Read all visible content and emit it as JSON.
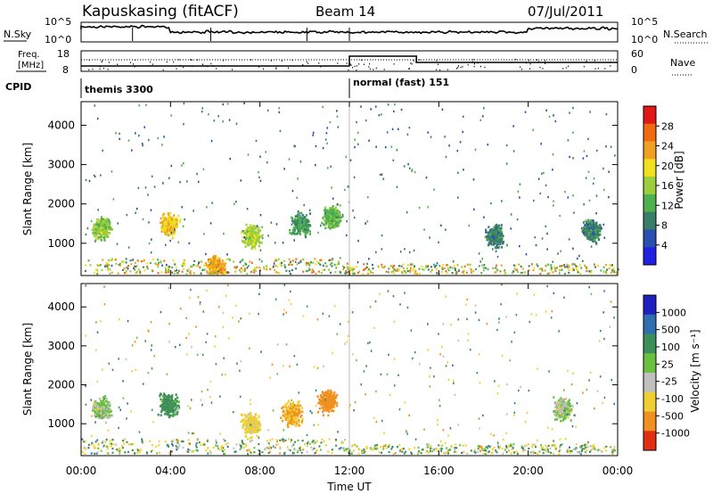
{
  "header": {
    "title": "Kapuskasing (fitACF)",
    "beam": "Beam 14",
    "date": "07/Jul/2011"
  },
  "noise_panel": {
    "left_label": "N.Sky",
    "right_label": "N.Search",
    "ticks_left": [
      "10^5",
      "10^0"
    ],
    "ticks_right": [
      "10^5",
      "10^0"
    ]
  },
  "freq_panel": {
    "left_label_1": "Freq.",
    "left_label_2": "[MHz]",
    "right_label": "Nave",
    "ticks_left": [
      "18",
      "8"
    ],
    "ticks_right": [
      "60",
      "0"
    ]
  },
  "cpid": {
    "label": "CPID",
    "segments": [
      {
        "name": "themis 3300",
        "start_hour": 0,
        "end_hour": 12
      },
      {
        "name": "normal (fast) 151",
        "start_hour": 12,
        "end_hour": 24
      }
    ]
  },
  "x_axis": {
    "label": "Time UT",
    "ticks": [
      "00:00",
      "04:00",
      "08:00",
      "12:00",
      "16:00",
      "20:00",
      "00:00"
    ]
  },
  "power_panel": {
    "ylabel": "Slant Range [km]",
    "yticks": [
      "4000",
      "3000",
      "2000",
      "1000"
    ],
    "colorbar_label": "Power [dB]",
    "colorbar_ticks": [
      "28",
      "24",
      "20",
      "16",
      "12",
      "8",
      "4"
    ],
    "colors": [
      "#2020e0",
      "#2a4fb0",
      "#3a7d6a",
      "#4fb050",
      "#9ccd3c",
      "#f0e020",
      "#f0a020",
      "#ef6a10",
      "#e01818"
    ]
  },
  "velocity_panel": {
    "ylabel": "Slant Range [km]",
    "yticks": [
      "4000",
      "3000",
      "2000",
      "1000"
    ],
    "colorbar_label": "Velocity [m s⁻¹]",
    "colorbar_ticks": [
      "1000",
      "500",
      "100",
      "25",
      "-25",
      "-100",
      "-500",
      "-1000"
    ],
    "colors": [
      "#2020c0",
      "#2f6fb0",
      "#3d8f5a",
      "#6cc040",
      "#c0c0c0",
      "#f0d030",
      "#f09020",
      "#e03010"
    ]
  },
  "chart_data": {
    "type": "heatmap",
    "x_range_hours": [
      0,
      24
    ],
    "y_range_km": [
      180,
      4600
    ],
    "power_clusters": [
      {
        "t_hours": 0.9,
        "range_km": 1400,
        "power_db": 14
      },
      {
        "t_hours": 3.9,
        "range_km": 1500,
        "power_db": 20
      },
      {
        "t_hours": 7.6,
        "range_km": 1200,
        "power_db": 16
      },
      {
        "t_hours": 9.8,
        "range_km": 1500,
        "power_db": 10
      },
      {
        "t_hours": 11.2,
        "range_km": 1700,
        "power_db": 12
      },
      {
        "t_hours": 6.0,
        "range_km": 400,
        "power_db": 22
      },
      {
        "t_hours": 18.5,
        "range_km": 1200,
        "power_db": 8
      },
      {
        "t_hours": 22.8,
        "range_km": 1350,
        "power_db": 8
      }
    ],
    "velocity_clusters": [
      {
        "t_hours": 0.9,
        "range_km": 1400,
        "velocity_ms": 0
      },
      {
        "t_hours": 3.9,
        "range_km": 1500,
        "velocity_ms": 100
      },
      {
        "t_hours": 7.6,
        "range_km": 1000,
        "velocity_ms": -100
      },
      {
        "t_hours": 9.4,
        "range_km": 1300,
        "velocity_ms": -300
      },
      {
        "t_hours": 11.0,
        "range_km": 1600,
        "velocity_ms": -500
      },
      {
        "t_hours": 21.5,
        "range_km": 1400,
        "velocity_ms": 0
      }
    ]
  }
}
